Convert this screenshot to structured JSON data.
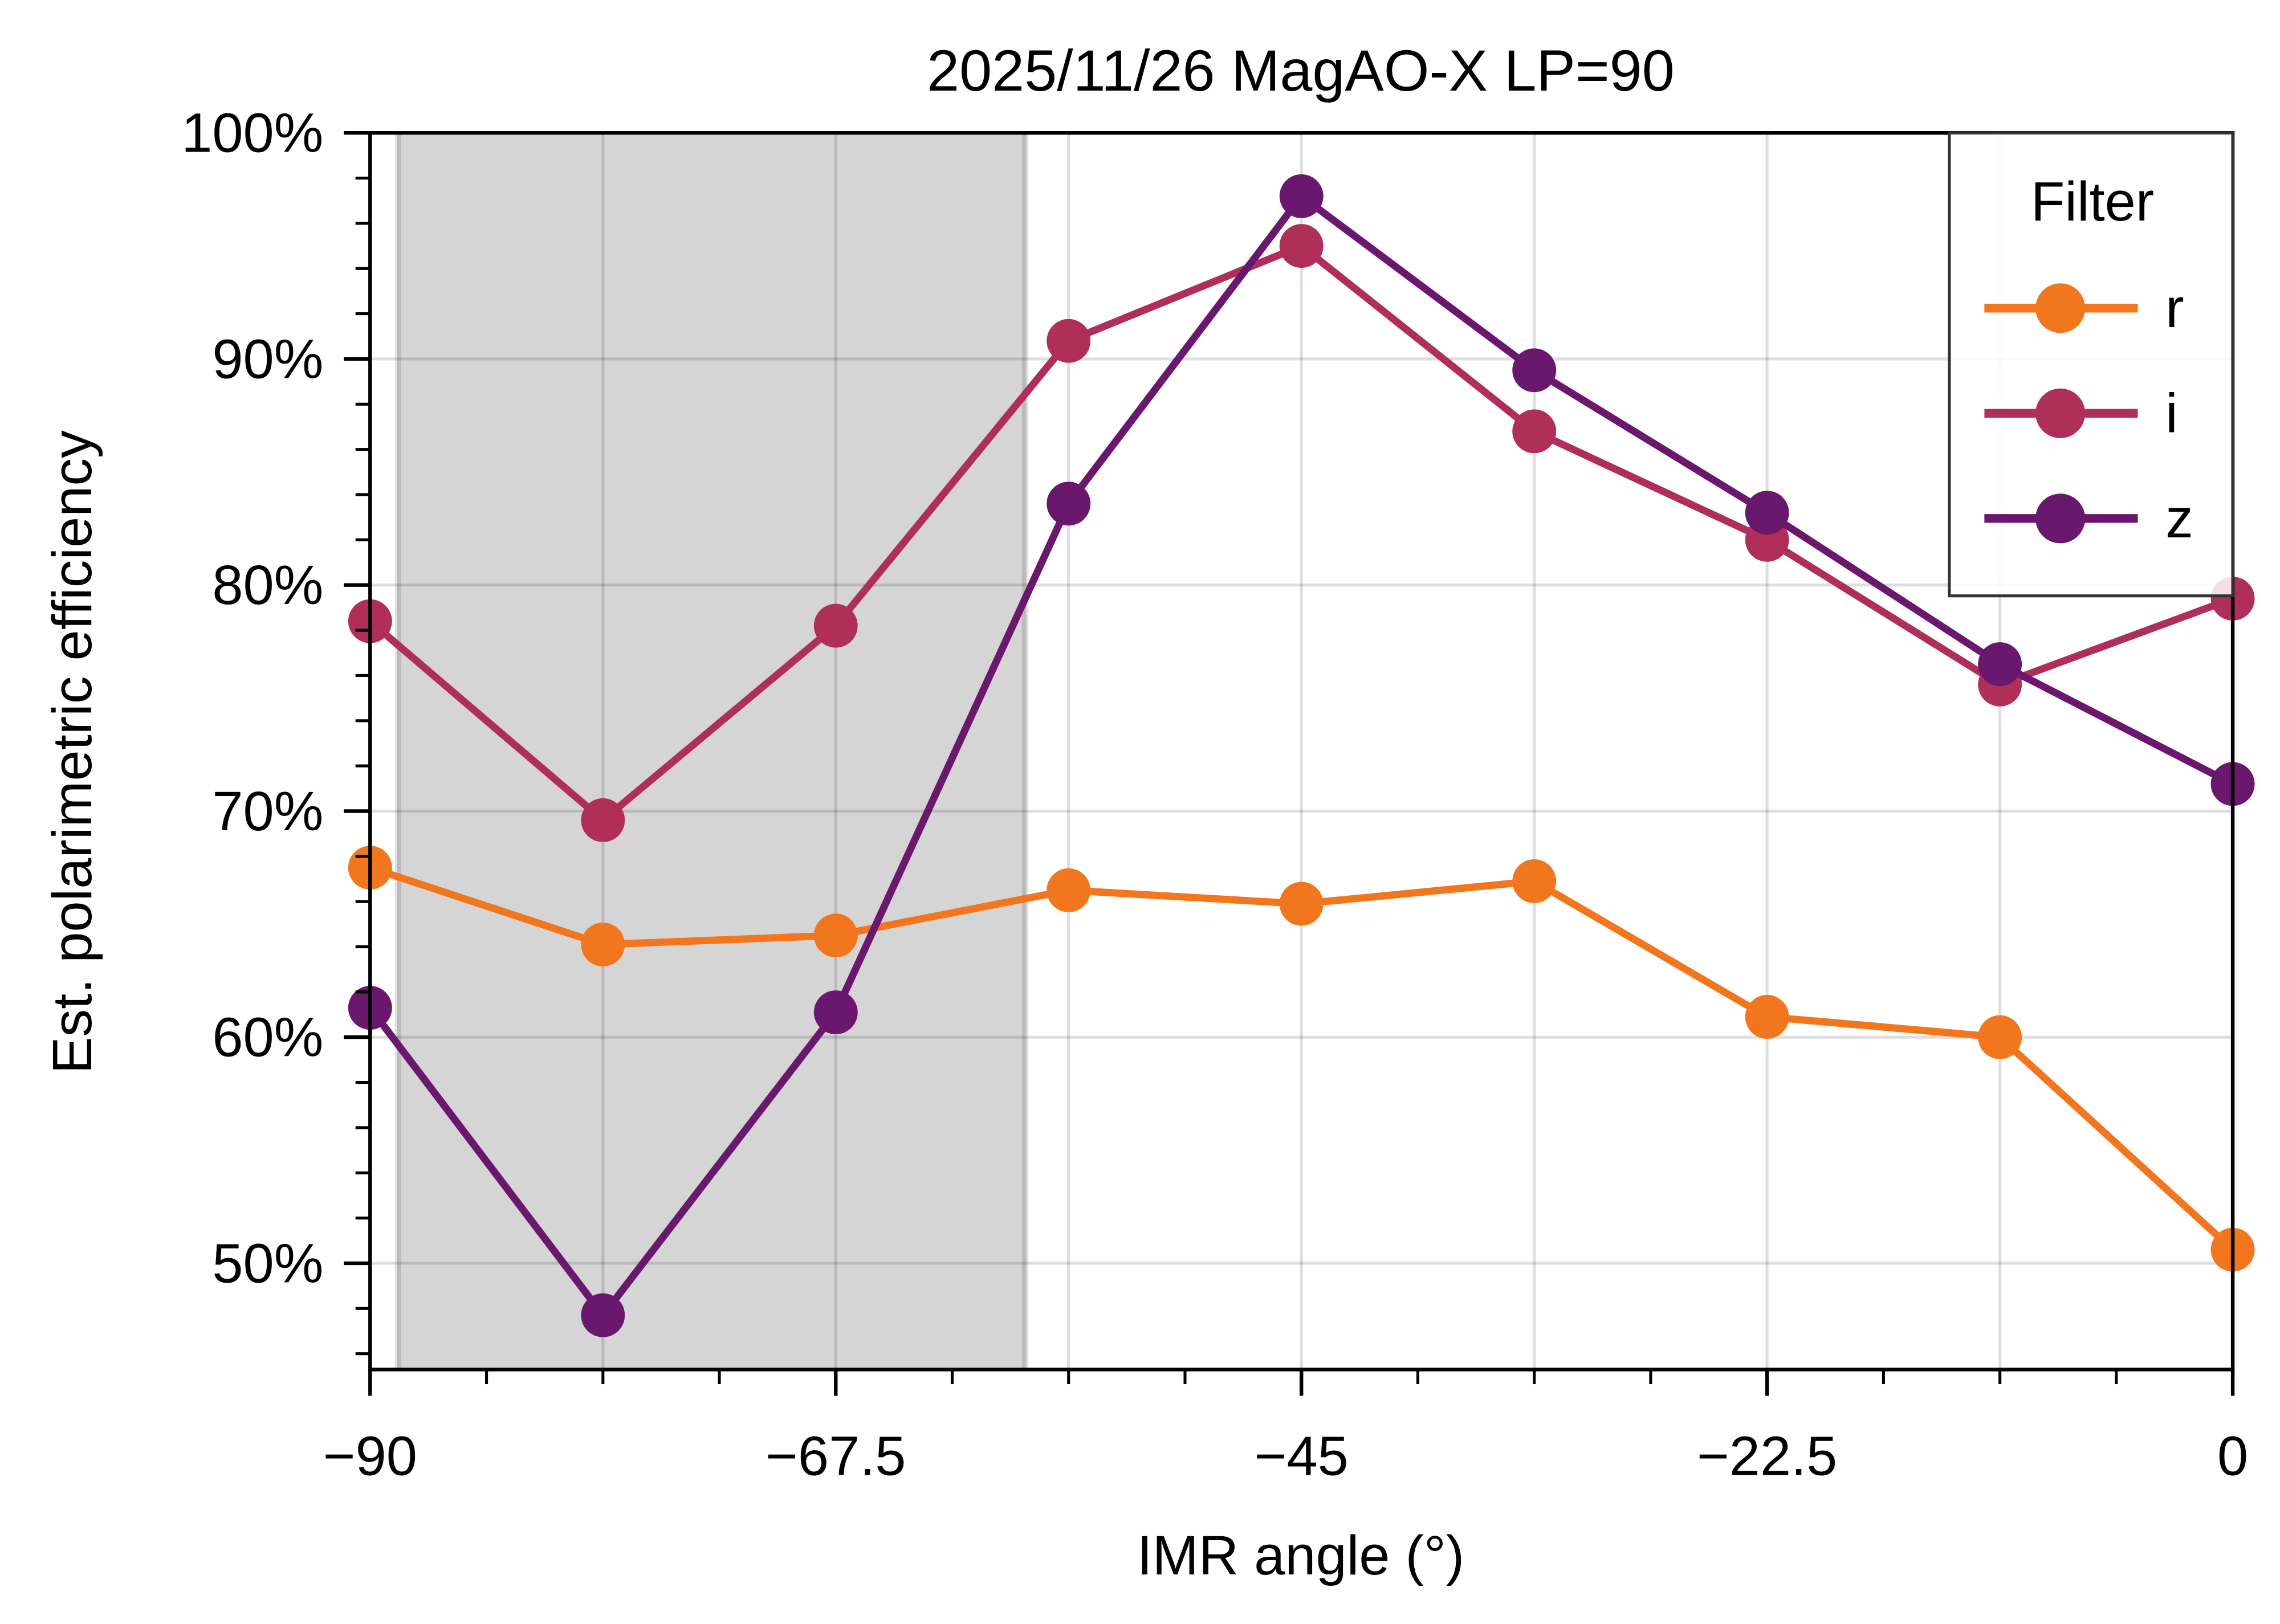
{
  "chart_data": {
    "type": "line",
    "title": "2025/11/26 MagAO-X LP=90",
    "xlabel": "IMR angle (°)",
    "ylabel": "Est. polarimetric efficiency",
    "xlim": [
      -90,
      0
    ],
    "ylim": [
      45.3,
      100
    ],
    "x_ticks": [
      -90,
      -67.5,
      -45,
      -22.5,
      0
    ],
    "x_tick_labels": [
      "−90",
      "−67.5",
      "−45",
      "−22.5",
      "0"
    ],
    "y_ticks": [
      50,
      60,
      70,
      80,
      90,
      100
    ],
    "y_tick_labels": [
      "50%",
      "60%",
      "70%",
      "80%",
      "90%",
      "100%"
    ],
    "grid": true,
    "shaded_region": {
      "x": [
        -88.6,
        -58.4
      ],
      "color": "#d5d5d5"
    },
    "x": [
      -90,
      -78.75,
      -67.5,
      -56.25,
      -45,
      -33.75,
      -22.5,
      -11.25,
      0
    ],
    "legend": {
      "title": "Filter",
      "placement": "top-right"
    },
    "series": [
      {
        "name": "r",
        "color": "#f1761d",
        "values": [
          67.5,
          64.1,
          64.5,
          66.5,
          65.9,
          66.9,
          60.9,
          60.0,
          50.6
        ]
      },
      {
        "name": "i",
        "color": "#b02f59",
        "values": [
          78.4,
          69.6,
          78.2,
          90.8,
          95.0,
          86.8,
          82.0,
          75.6,
          79.4
        ]
      },
      {
        "name": "z",
        "color": "#6a176e",
        "values": [
          61.3,
          47.7,
          61.1,
          83.6,
          97.2,
          89.5,
          83.2,
          76.5,
          71.2
        ]
      }
    ]
  }
}
